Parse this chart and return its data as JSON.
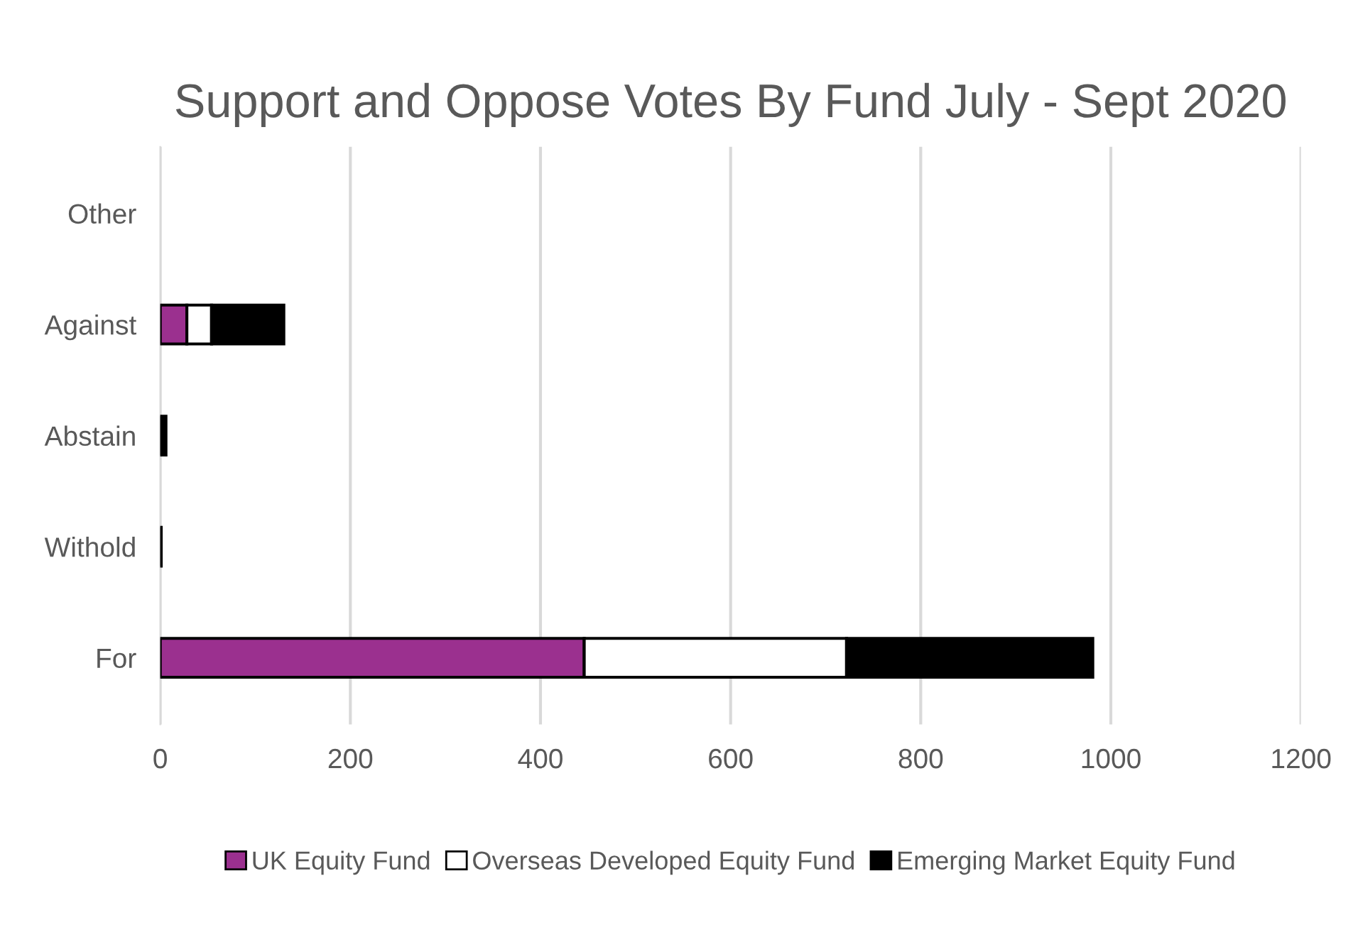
{
  "chart_data": {
    "type": "bar",
    "orientation": "horizontal",
    "stacked": true,
    "title": "Support and Oppose Votes By Fund July - Sept 2020",
    "categories": [
      "Other",
      "Against",
      "Abstain",
      "Withold",
      "For"
    ],
    "series": [
      {
        "name": "UK Equity Fund",
        "color": "#9b308f",
        "values": [
          null,
          28,
          null,
          null,
          446
        ]
      },
      {
        "name": "Overseas Developed Equity Fund",
        "color": "#ffffff",
        "values": [
          null,
          26,
          null,
          null,
          276
        ]
      },
      {
        "name": "Emerging Market Equity Fund",
        "color": "#000000",
        "values": [
          null,
          76,
          6,
          1,
          259
        ]
      }
    ],
    "xlim": [
      0,
      1200
    ],
    "xticks": [
      0,
      200,
      400,
      600,
      800,
      1000,
      1200
    ],
    "grid": "x",
    "legend": "bottom"
  }
}
